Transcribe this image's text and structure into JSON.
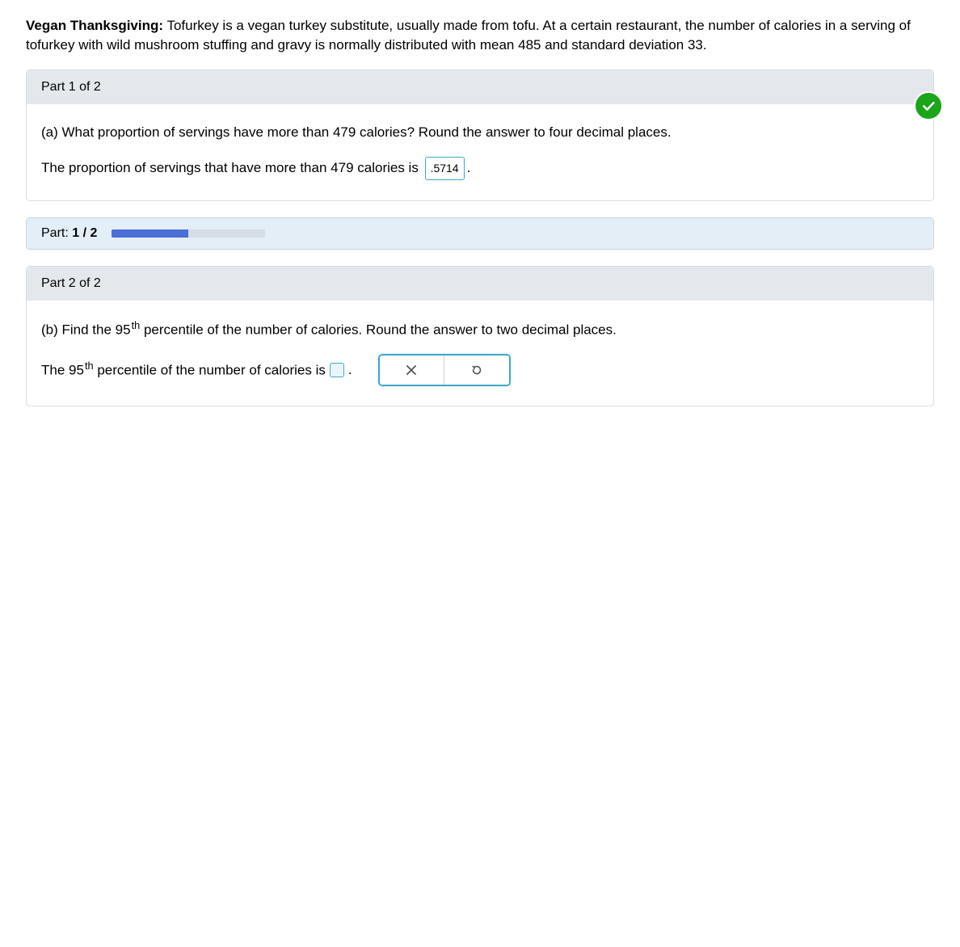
{
  "intro": {
    "title": "Vegan Thanksgiving:",
    "text_before_mean": " Tofurkey is a vegan turkey substitute, usually made from tofu. At a certain restaurant, the number of calories in a serving of tofurkey with wild mushroom stuffing and gravy is normally distributed with mean ",
    "mean": "485",
    "text_between": " and standard deviation ",
    "sd": "33",
    "period": "."
  },
  "part1": {
    "header": "Part 1 of 2",
    "q_prefix": "(a) What proportion of servings have more than ",
    "q_cal": "479",
    "q_suffix": " calories? Round the answer to four decimal places.",
    "a_prefix": "The proportion of servings that have more than ",
    "a_cal": "479",
    "a_mid": " calories is ",
    "a_value": ".5714",
    "a_period": "."
  },
  "progress": {
    "label_prefix": "Part: ",
    "label_bold": "1 / 2",
    "percent": 50
  },
  "part2": {
    "header": "Part 2 of 2",
    "q_prefix": "(b) Find the ",
    "q_num": "95",
    "q_sup": "th",
    "q_suffix": " percentile of the number of calories. Round the answer to two decimal places.",
    "a_prefix": "The ",
    "a_num": "95",
    "a_sup": "th",
    "a_mid": " percentile of the number of calories is ",
    "a_period": "."
  },
  "colors": {
    "correct_green": "#1aa51a",
    "accent_blue": "#3fa9c9",
    "progress_fill": "#4a6fd6"
  }
}
